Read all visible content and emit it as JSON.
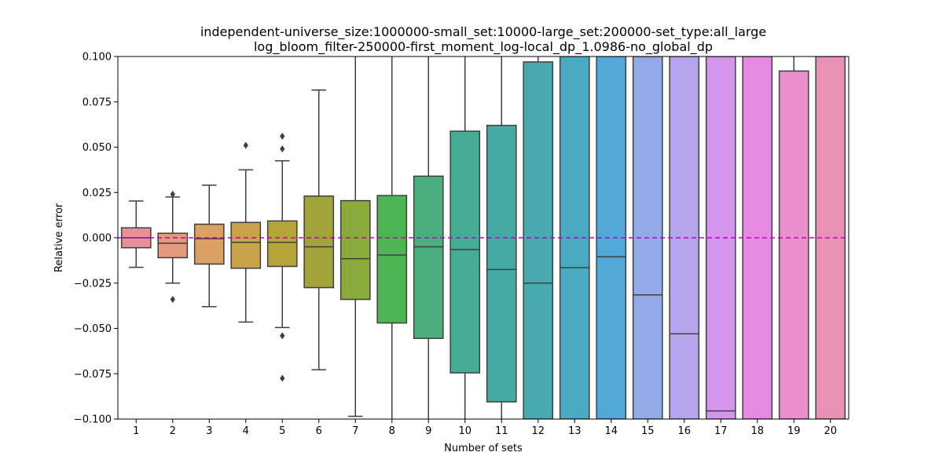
{
  "chart_data": {
    "type": "box",
    "title_line1": "independent-universe_size:1000000-small_set:10000-large_set:200000-set_type:all_large",
    "title_line2": "log_bloom_filter-250000-first_moment_log-local_dp_1.0986-no_global_dp",
    "xlabel": "Number of sets",
    "ylabel": "Relative error",
    "ylim": [
      -0.1,
      0.1
    ],
    "yticks": [
      -0.1,
      -0.075,
      -0.05,
      -0.025,
      0.0,
      0.025,
      0.05,
      0.075,
      0.1
    ],
    "ytick_labels": [
      "−0.100",
      "−0.075",
      "−0.050",
      "−0.025",
      "0.000",
      "0.025",
      "0.050",
      "0.075",
      "0.100"
    ],
    "categories": [
      "1",
      "2",
      "3",
      "4",
      "5",
      "6",
      "7",
      "8",
      "9",
      "10",
      "11",
      "12",
      "13",
      "14",
      "15",
      "16",
      "17",
      "18",
      "19",
      "20"
    ],
    "reference_line": {
      "y": 0.0,
      "color": "#bf00bf",
      "style": "dashed"
    },
    "boxes": [
      {
        "category": "1",
        "color": "#e7909a",
        "q1": -0.0055,
        "median": 0.0,
        "q3": 0.0055,
        "whisker_low": -0.0163,
        "whisker_high": 0.0203,
        "outliers": []
      },
      {
        "category": "2",
        "color": "#e59a7e",
        "q1": -0.011,
        "median": -0.003,
        "q3": 0.0025,
        "whisker_low": -0.025,
        "whisker_high": 0.0225,
        "outliers": [
          -0.034,
          0.024
        ]
      },
      {
        "category": "3",
        "color": "#dba064",
        "q1": -0.0145,
        "median": -0.0005,
        "q3": 0.0075,
        "whisker_low": -0.038,
        "whisker_high": 0.029,
        "outliers": []
      },
      {
        "category": "4",
        "color": "#c9a34a",
        "q1": -0.0168,
        "median": -0.0025,
        "q3": 0.0085,
        "whisker_low": -0.0465,
        "whisker_high": 0.0375,
        "outliers": [
          0.051
        ]
      },
      {
        "category": "5",
        "color": "#b6a53b",
        "q1": -0.0158,
        "median": -0.0025,
        "q3": 0.0093,
        "whisker_low": -0.0495,
        "whisker_high": 0.0425,
        "outliers": [
          0.049,
          0.056,
          -0.054,
          -0.0775
        ]
      },
      {
        "category": "6",
        "color": "#a2a33a",
        "q1": -0.0275,
        "median": -0.005,
        "q3": 0.023,
        "whisker_low": -0.0728,
        "whisker_high": 0.0815,
        "outliers": []
      },
      {
        "category": "7",
        "color": "#8aab3c",
        "q1": -0.034,
        "median": -0.0115,
        "q3": 0.0205,
        "whisker_low": -0.0985,
        "whisker_high": 0.1,
        "outliers": []
      },
      {
        "category": "8",
        "color": "#4db551",
        "q1": -0.047,
        "median": -0.0095,
        "q3": 0.0233,
        "whisker_low": -0.1,
        "whisker_high": 0.1,
        "outliers": []
      },
      {
        "category": "9",
        "color": "#4bae7c",
        "q1": -0.0555,
        "median": -0.005,
        "q3": 0.034,
        "whisker_low": -0.1,
        "whisker_high": 0.1,
        "outliers": []
      },
      {
        "category": "10",
        "color": "#47ac95",
        "q1": -0.0745,
        "median": -0.0065,
        "q3": 0.0588,
        "whisker_low": -0.1,
        "whisker_high": 0.1,
        "outliers": []
      },
      {
        "category": "11",
        "color": "#45aaa3",
        "q1": -0.0905,
        "median": -0.0175,
        "q3": 0.062,
        "whisker_low": -0.1,
        "whisker_high": 0.1,
        "outliers": []
      },
      {
        "category": "12",
        "color": "#47aab1",
        "q1": -0.1,
        "median": -0.025,
        "q3": 0.097,
        "whisker_low": -0.1,
        "whisker_high": 0.1,
        "outliers": []
      },
      {
        "category": "13",
        "color": "#4aaac2",
        "q1": -0.1,
        "median": -0.0165,
        "q3": 0.1,
        "whisker_low": -0.1,
        "whisker_high": 0.1,
        "outliers": []
      },
      {
        "category": "14",
        "color": "#52a9d8",
        "q1": -0.1,
        "median": -0.0105,
        "q3": 0.1,
        "whisker_low": -0.1,
        "whisker_high": 0.1,
        "outliers": []
      },
      {
        "category": "15",
        "color": "#93aae8",
        "q1": -0.1,
        "median": -0.0315,
        "q3": 0.1,
        "whisker_low": -0.1,
        "whisker_high": 0.1,
        "outliers": []
      },
      {
        "category": "16",
        "color": "#b6a5ec",
        "q1": -0.1,
        "median": -0.053,
        "q3": 0.1,
        "whisker_low": -0.1,
        "whisker_high": 0.1,
        "outliers": []
      },
      {
        "category": "17",
        "color": "#d495ec",
        "q1": -0.1,
        "median": -0.0955,
        "q3": 0.1,
        "whisker_low": -0.1,
        "whisker_high": 0.1,
        "outliers": []
      },
      {
        "category": "18",
        "color": "#e58ae0",
        "q1": -0.1,
        "median": null,
        "q3": 0.1,
        "whisker_low": -0.1,
        "whisker_high": 0.1,
        "outliers": []
      },
      {
        "category": "19",
        "color": "#e88fcc",
        "q1": -0.1,
        "median": null,
        "q3": 0.092,
        "whisker_low": -0.1,
        "whisker_high": 0.1,
        "outliers": []
      },
      {
        "category": "20",
        "color": "#e891b5",
        "q1": -0.1,
        "median": null,
        "q3": 0.1,
        "whisker_low": -0.1,
        "whisker_high": 0.1,
        "outliers": []
      }
    ],
    "grid": false,
    "legend": "none"
  }
}
